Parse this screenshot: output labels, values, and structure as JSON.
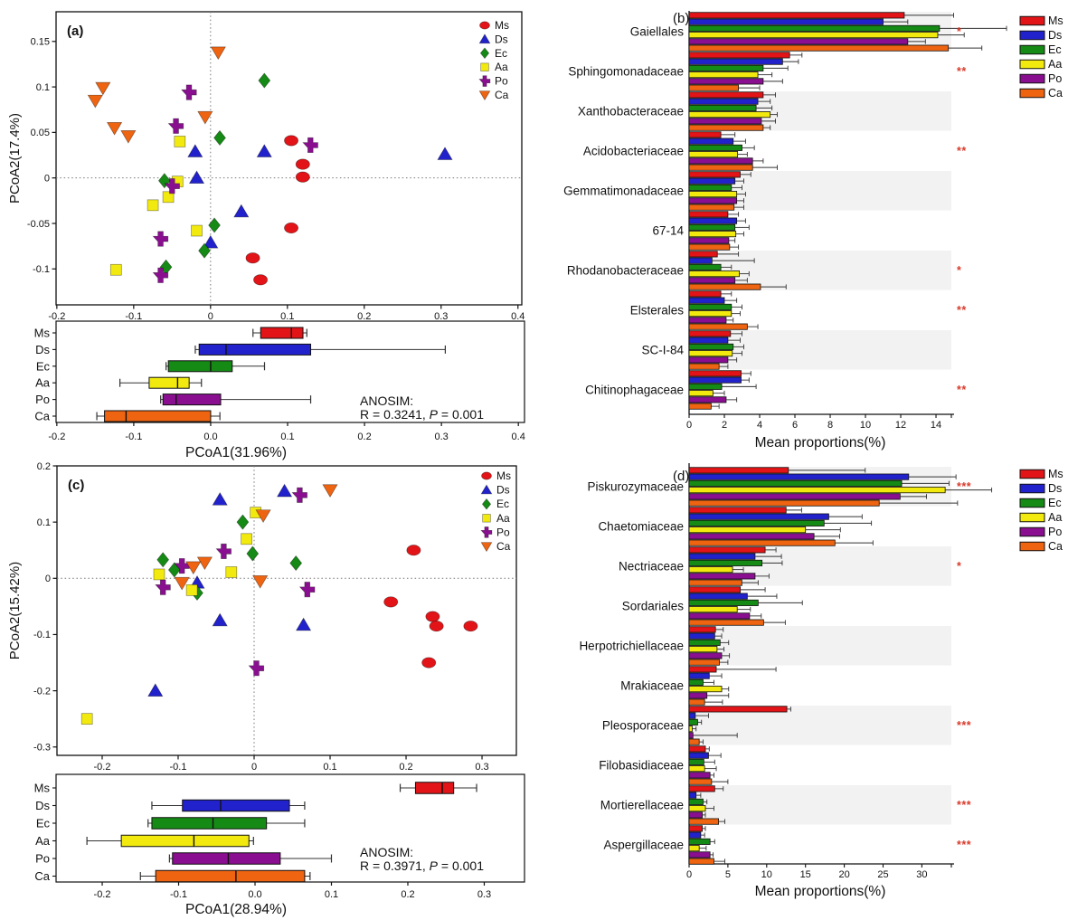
{
  "style": {
    "sig_color": "#d93a2b",
    "band_color": "#f2f2f2",
    "axis_color": "#111111",
    "background": "#ffffff"
  },
  "groups": [
    {
      "label": "Ms",
      "color": "#e21417",
      "marker": "ellipse"
    },
    {
      "label": "Ds",
      "color": "#2222cc",
      "marker": "triangle-up"
    },
    {
      "label": "Ec",
      "color": "#158a15",
      "marker": "diamond"
    },
    {
      "label": "Aa",
      "color": "#f2ea0f",
      "marker": "square"
    },
    {
      "label": "Po",
      "color": "#8a0f90",
      "marker": "cross"
    },
    {
      "label": "Ca",
      "color": "#ee6411",
      "marker": "triangle-down"
    }
  ],
  "chart_data": [
    {
      "id": "a-scatter",
      "type": "scatter",
      "panel_label": "(a)",
      "ylabel": "PCoA2(17.4%)",
      "xlim": [
        -0.201,
        0.405
      ],
      "ylim": [
        -0.1395,
        0.1826
      ],
      "xticks": [
        -0.2,
        -0.1,
        0,
        0.1,
        0.2,
        0.3,
        0.4
      ],
      "xtick_labels": [
        "-0.2",
        "-0.1",
        "0",
        "0.1",
        "0.2",
        "0.3",
        "0.4"
      ],
      "yticks": [
        0.15,
        0.1,
        0.05,
        0,
        -0.05,
        -0.1
      ],
      "ytick_labels": [
        "0.15",
        "0.1",
        "0.05",
        "0",
        "-0.05",
        "-0.1"
      ],
      "legend_order": [
        "Ms",
        "Ds",
        "Ec",
        "Aa",
        "Po",
        "Ca"
      ],
      "series": [
        {
          "name": "Ms",
          "points": [
            [
              0.105,
              0.041
            ],
            [
              0.12,
              0.015
            ],
            [
              0.12,
              0.001
            ],
            [
              0.105,
              -0.055
            ],
            [
              0.055,
              -0.088
            ],
            [
              0.065,
              -0.112
            ]
          ]
        },
        {
          "name": "Ds",
          "points": [
            [
              -0.02,
              0.029
            ],
            [
              0.07,
              0.029
            ],
            [
              -0.018,
              0.0
            ],
            [
              0.04,
              -0.037
            ],
            [
              0.0,
              -0.071
            ],
            [
              0.305,
              0.026
            ]
          ]
        },
        {
          "name": "Ec",
          "points": [
            [
              0.07,
              0.107
            ],
            [
              0.012,
              0.044
            ],
            [
              -0.06,
              -0.003
            ],
            [
              0.005,
              -0.052
            ],
            [
              -0.008,
              -0.08
            ],
            [
              -0.058,
              -0.098
            ]
          ]
        },
        {
          "name": "Aa",
          "points": [
            [
              -0.04,
              0.04
            ],
            [
              -0.043,
              -0.004
            ],
            [
              -0.055,
              -0.021
            ],
            [
              -0.075,
              -0.03
            ],
            [
              -0.018,
              -0.058
            ],
            [
              -0.123,
              -0.101
            ]
          ]
        },
        {
          "name": "Po",
          "points": [
            [
              -0.028,
              0.094
            ],
            [
              -0.045,
              0.057
            ],
            [
              0.13,
              0.036
            ],
            [
              -0.05,
              -0.009
            ],
            [
              -0.065,
              -0.067
            ],
            [
              -0.065,
              -0.107
            ]
          ]
        },
        {
          "name": "Ca",
          "points": [
            [
              0.01,
              0.138
            ],
            [
              -0.14,
              0.099
            ],
            [
              -0.15,
              0.085
            ],
            [
              -0.125,
              0.055
            ],
            [
              -0.107,
              0.046
            ],
            [
              -0.007,
              0.067
            ]
          ]
        }
      ]
    },
    {
      "id": "a-box",
      "type": "boxplot",
      "xlabel": "PCoA1(31.96%)",
      "xlim": [
        -0.201,
        0.408
      ],
      "xticks": [
        -0.2,
        -0.1,
        0,
        0.1,
        0.2,
        0.3,
        0.4
      ],
      "xtick_labels": [
        "-0.2",
        "-0.1",
        "0.0",
        "0.1",
        "0.2",
        "0.3",
        "0.4"
      ],
      "categories": [
        "Ms",
        "Ds",
        "Ec",
        "Aa",
        "Po",
        "Ca"
      ],
      "boxes": [
        {
          "min": 0.055,
          "q1": 0.065,
          "median": 0.105,
          "q3": 0.12,
          "max": 0.125
        },
        {
          "min": -0.02,
          "q1": -0.015,
          "median": 0.02,
          "q3": 0.13,
          "max": 0.305
        },
        {
          "min": -0.058,
          "q1": -0.055,
          "median": 0.0,
          "q3": 0.028,
          "max": 0.07
        },
        {
          "min": -0.118,
          "q1": -0.08,
          "median": -0.043,
          "q3": -0.028,
          "max": -0.012
        },
        {
          "min": -0.065,
          "q1": -0.062,
          "median": -0.045,
          "q3": 0.013,
          "max": 0.13
        },
        {
          "min": -0.148,
          "q1": -0.138,
          "median": -0.11,
          "q3": 0.0,
          "max": 0.012
        }
      ],
      "anosim": {
        "line1": "ANOSIM:",
        "line2_pre": "R = 0.3241, ",
        "line2_italic": "P",
        "line2_post": " = 0.001"
      }
    },
    {
      "id": "b-bars",
      "type": "barh",
      "panel_label": "(b)",
      "xlabel": "Mean proportions(%)",
      "xlim": [
        0,
        14.87
      ],
      "xticks": [
        0,
        2,
        4,
        6,
        8,
        10,
        12,
        14
      ],
      "series_order": [
        "Ms",
        "Ds",
        "Ec",
        "Aa",
        "Po",
        "Ca"
      ],
      "rows": [
        {
          "taxon": "Gaiellales",
          "shaded": true,
          "sig": "*",
          "values": [
            12.2,
            11.0,
            14.2,
            14.1,
            12.4,
            14.7
          ],
          "errors": [
            15.0,
            12.4,
            18.0,
            15.6,
            13.4,
            16.6
          ]
        },
        {
          "taxon": "Sphingomonadaceae",
          "shaded": false,
          "sig": "**",
          "values": [
            5.7,
            5.3,
            4.2,
            3.9,
            4.2,
            2.8
          ],
          "errors": [
            6.4,
            6.2,
            5.6,
            4.7,
            5.3,
            4.0
          ]
        },
        {
          "taxon": "Xanthobacteraceae",
          "shaded": true,
          "sig": null,
          "values": [
            4.2,
            3.9,
            3.8,
            4.6,
            4.1,
            4.2
          ],
          "errors": [
            4.9,
            4.6,
            4.7,
            5.0,
            4.9,
            4.6
          ]
        },
        {
          "taxon": "Acidobacteriaceae",
          "shaded": false,
          "sig": "**",
          "values": [
            1.8,
            2.5,
            3.0,
            2.75,
            3.6,
            3.6
          ],
          "errors": [
            2.6,
            3.2,
            3.7,
            3.3,
            4.2,
            5.0
          ]
        },
        {
          "taxon": "Gemmatimonadaceae",
          "shaded": true,
          "sig": null,
          "values": [
            2.9,
            2.6,
            2.4,
            2.7,
            2.7,
            2.55
          ],
          "errors": [
            3.5,
            3.1,
            3.0,
            3.2,
            3.1,
            3.1
          ]
        },
        {
          "taxon": "67-14",
          "shaded": false,
          "sig": null,
          "values": [
            2.2,
            2.7,
            2.6,
            2.65,
            2.25,
            2.3
          ],
          "errors": [
            2.8,
            3.2,
            3.4,
            3.1,
            2.6,
            2.8
          ]
        },
        {
          "taxon": "Rhodanobacteraceae",
          "shaded": true,
          "sig": "*",
          "values": [
            1.6,
            1.3,
            1.8,
            2.85,
            2.6,
            4.05
          ],
          "errors": [
            2.8,
            3.7,
            2.4,
            3.4,
            3.3,
            5.5
          ]
        },
        {
          "taxon": "Elsterales",
          "shaded": false,
          "sig": "**",
          "values": [
            1.8,
            2.0,
            2.4,
            2.4,
            2.1,
            3.3
          ],
          "errors": [
            2.4,
            2.7,
            3.0,
            2.9,
            2.5,
            3.9
          ]
        },
        {
          "taxon": "SC-I-84",
          "shaded": true,
          "sig": null,
          "values": [
            2.35,
            2.2,
            2.5,
            2.45,
            2.2,
            1.7
          ],
          "errors": [
            3.0,
            2.9,
            3.1,
            3.0,
            2.7,
            2.2
          ]
        },
        {
          "taxon": "Chitinophagaceae",
          "shaded": false,
          "sig": "**",
          "values": [
            2.95,
            2.95,
            1.85,
            1.35,
            2.1,
            1.25
          ],
          "errors": [
            3.5,
            3.4,
            3.8,
            2.0,
            2.7,
            1.7
          ]
        }
      ]
    },
    {
      "id": "c-scatter",
      "type": "scatter",
      "panel_label": "(c)",
      "ylabel": "PCoA2(15.42%)",
      "xlim": [
        -0.2595,
        0.3452
      ],
      "ylim": [
        -0.3149,
        0.2
      ],
      "xticks": [
        -0.2,
        -0.1,
        0,
        0.1,
        0.2,
        0.3
      ],
      "xtick_labels": [
        "-0.2",
        "-0.1",
        "0",
        "0.1",
        "0.2",
        "0.3"
      ],
      "yticks": [
        0.2,
        0.1,
        0,
        -0.1,
        -0.2,
        -0.3
      ],
      "ytick_labels": [
        "0.2",
        "0.1",
        "0",
        "-0.1",
        "-0.2",
        "-0.3"
      ],
      "legend_order": [
        "Ms",
        "Ds",
        "Ec",
        "Aa",
        "Po",
        "Ca"
      ],
      "series": [
        {
          "name": "Ms",
          "points": [
            [
              0.21,
              0.05
            ],
            [
              0.18,
              -0.042
            ],
            [
              0.235,
              -0.068
            ],
            [
              0.24,
              -0.085
            ],
            [
              0.285,
              -0.085
            ],
            [
              0.23,
              -0.15
            ]
          ]
        },
        {
          "name": "Ds",
          "points": [
            [
              -0.045,
              0.14
            ],
            [
              0.04,
              0.155
            ],
            [
              -0.075,
              -0.008
            ],
            [
              -0.045,
              -0.075
            ],
            [
              0.065,
              -0.083
            ],
            [
              -0.13,
              -0.2
            ]
          ]
        },
        {
          "name": "Ec",
          "points": [
            [
              -0.015,
              0.1
            ],
            [
              -0.002,
              0.044
            ],
            [
              -0.12,
              0.033
            ],
            [
              -0.105,
              0.015
            ],
            [
              -0.075,
              -0.026
            ],
            [
              0.055,
              0.027
            ]
          ]
        },
        {
          "name": "Aa",
          "points": [
            [
              0.002,
              0.117
            ],
            [
              -0.01,
              0.07
            ],
            [
              -0.125,
              0.007
            ],
            [
              -0.03,
              0.011
            ],
            [
              -0.082,
              -0.021
            ],
            [
              -0.22,
              -0.25
            ]
          ]
        },
        {
          "name": "Po",
          "points": [
            [
              0.06,
              0.148
            ],
            [
              -0.04,
              0.048
            ],
            [
              -0.095,
              0.022
            ],
            [
              -0.12,
              -0.016
            ],
            [
              0.07,
              -0.02
            ],
            [
              0.003,
              -0.16
            ]
          ]
        },
        {
          "name": "Ca",
          "points": [
            [
              0.1,
              0.157
            ],
            [
              0.012,
              0.112
            ],
            [
              -0.065,
              0.028
            ],
            [
              -0.08,
              0.02
            ],
            [
              -0.095,
              -0.008
            ],
            [
              0.008,
              -0.005
            ]
          ]
        }
      ]
    },
    {
      "id": "c-box",
      "type": "boxplot",
      "xlabel": "PCoA1(28.94%)",
      "xlim": [
        -0.2604,
        0.3527
      ],
      "xticks": [
        -0.2,
        -0.1,
        0,
        0.1,
        0.2,
        0.3
      ],
      "xtick_labels": [
        "-0.2",
        "-0.1",
        "0.0",
        "0.1",
        "0.2",
        "0.3"
      ],
      "categories": [
        "Ms",
        "Ds",
        "Ec",
        "Aa",
        "Po",
        "Ca"
      ],
      "boxes": [
        {
          "min": 0.19,
          "q1": 0.21,
          "median": 0.245,
          "q3": 0.26,
          "max": 0.29
        },
        {
          "min": -0.135,
          "q1": -0.095,
          "median": -0.045,
          "q3": 0.045,
          "max": 0.065
        },
        {
          "min": -0.14,
          "q1": -0.135,
          "median": -0.055,
          "q3": 0.015,
          "max": 0.065
        },
        {
          "min": -0.22,
          "q1": -0.175,
          "median": -0.08,
          "q3": -0.008,
          "max": -0.002
        },
        {
          "min": -0.112,
          "q1": -0.108,
          "median": -0.035,
          "q3": 0.033,
          "max": 0.1
        },
        {
          "min": -0.15,
          "q1": -0.13,
          "median": -0.025,
          "q3": 0.065,
          "max": 0.072
        }
      ],
      "anosim": {
        "line1": "ANOSIM:",
        "line2_pre": "R = 0.3971, ",
        "line2_italic": "P",
        "line2_post": " = 0.001"
      }
    },
    {
      "id": "d-bars",
      "type": "barh",
      "panel_label": "(d)",
      "xlabel": "Mean proportions(%)",
      "xlim": [
        0,
        33.8
      ],
      "xticks": [
        0,
        5,
        10,
        15,
        20,
        25,
        30
      ],
      "series_order": [
        "Ms",
        "Ds",
        "Ec",
        "Aa",
        "Po",
        "Ca"
      ],
      "rows": [
        {
          "taxon": "Piskurozymaceae",
          "shaded": true,
          "sig": "***",
          "values": [
            12.8,
            28.3,
            27.4,
            33.0,
            27.2,
            24.5
          ],
          "errors": [
            22.7,
            34.4,
            33.5,
            39.0,
            30.6,
            34.6
          ]
        },
        {
          "taxon": "Chaetomiaceae",
          "shaded": false,
          "sig": null,
          "values": [
            12.5,
            18.0,
            17.4,
            15.0,
            16.1,
            18.8
          ],
          "errors": [
            14.5,
            22.3,
            23.5,
            19.5,
            19.4,
            23.7
          ]
        },
        {
          "taxon": "Nectriaceae",
          "shaded": true,
          "sig": "*",
          "values": [
            9.8,
            8.5,
            9.4,
            5.6,
            8.5,
            6.8
          ],
          "errors": [
            11.2,
            11.9,
            12.0,
            7.0,
            10.3,
            8.9
          ]
        },
        {
          "taxon": "Sordariales",
          "shaded": false,
          "sig": null,
          "values": [
            6.6,
            7.5,
            8.9,
            6.2,
            7.8,
            9.6
          ],
          "errors": [
            9.8,
            11.3,
            14.6,
            7.9,
            9.3,
            12.4
          ]
        },
        {
          "taxon": "Herpotrichiellaceae",
          "shaded": true,
          "sig": null,
          "values": [
            3.4,
            3.3,
            4.0,
            3.6,
            4.2,
            3.9
          ],
          "errors": [
            4.4,
            4.2,
            5.1,
            4.5,
            5.2,
            5.0
          ]
        },
        {
          "taxon": "Mrakiaceae",
          "shaded": false,
          "sig": null,
          "values": [
            3.5,
            2.6,
            1.8,
            4.2,
            2.3,
            2.0
          ],
          "errors": [
            11.2,
            4.2,
            3.2,
            5.1,
            5.1,
            4.3
          ]
        },
        {
          "taxon": "Pleosporaceae",
          "shaded": true,
          "sig": "***",
          "values": [
            12.6,
            0.8,
            1.1,
            0.4,
            0.5,
            1.3
          ],
          "errors": [
            13.1,
            2.5,
            1.6,
            0.9,
            6.2,
            1.8
          ]
        },
        {
          "taxon": "Filobasidiaceae",
          "shaded": false,
          "sig": null,
          "values": [
            2.1,
            2.5,
            1.9,
            2.0,
            2.7,
            2.9
          ],
          "errors": [
            2.6,
            4.1,
            3.3,
            3.5,
            3.2,
            5.0
          ]
        },
        {
          "taxon": "Mortierellaceae",
          "shaded": true,
          "sig": "***",
          "values": [
            3.3,
            0.9,
            1.8,
            2.1,
            1.7,
            3.8
          ],
          "errors": [
            4.4,
            1.5,
            2.3,
            3.2,
            2.1,
            4.6
          ]
        },
        {
          "taxon": "Aspergillaceae",
          "shaded": false,
          "sig": "***",
          "values": [
            1.7,
            1.5,
            2.7,
            1.3,
            2.7,
            3.2
          ],
          "errors": [
            2.1,
            2.0,
            3.3,
            2.2,
            3.1,
            4.6
          ]
        }
      ]
    }
  ]
}
